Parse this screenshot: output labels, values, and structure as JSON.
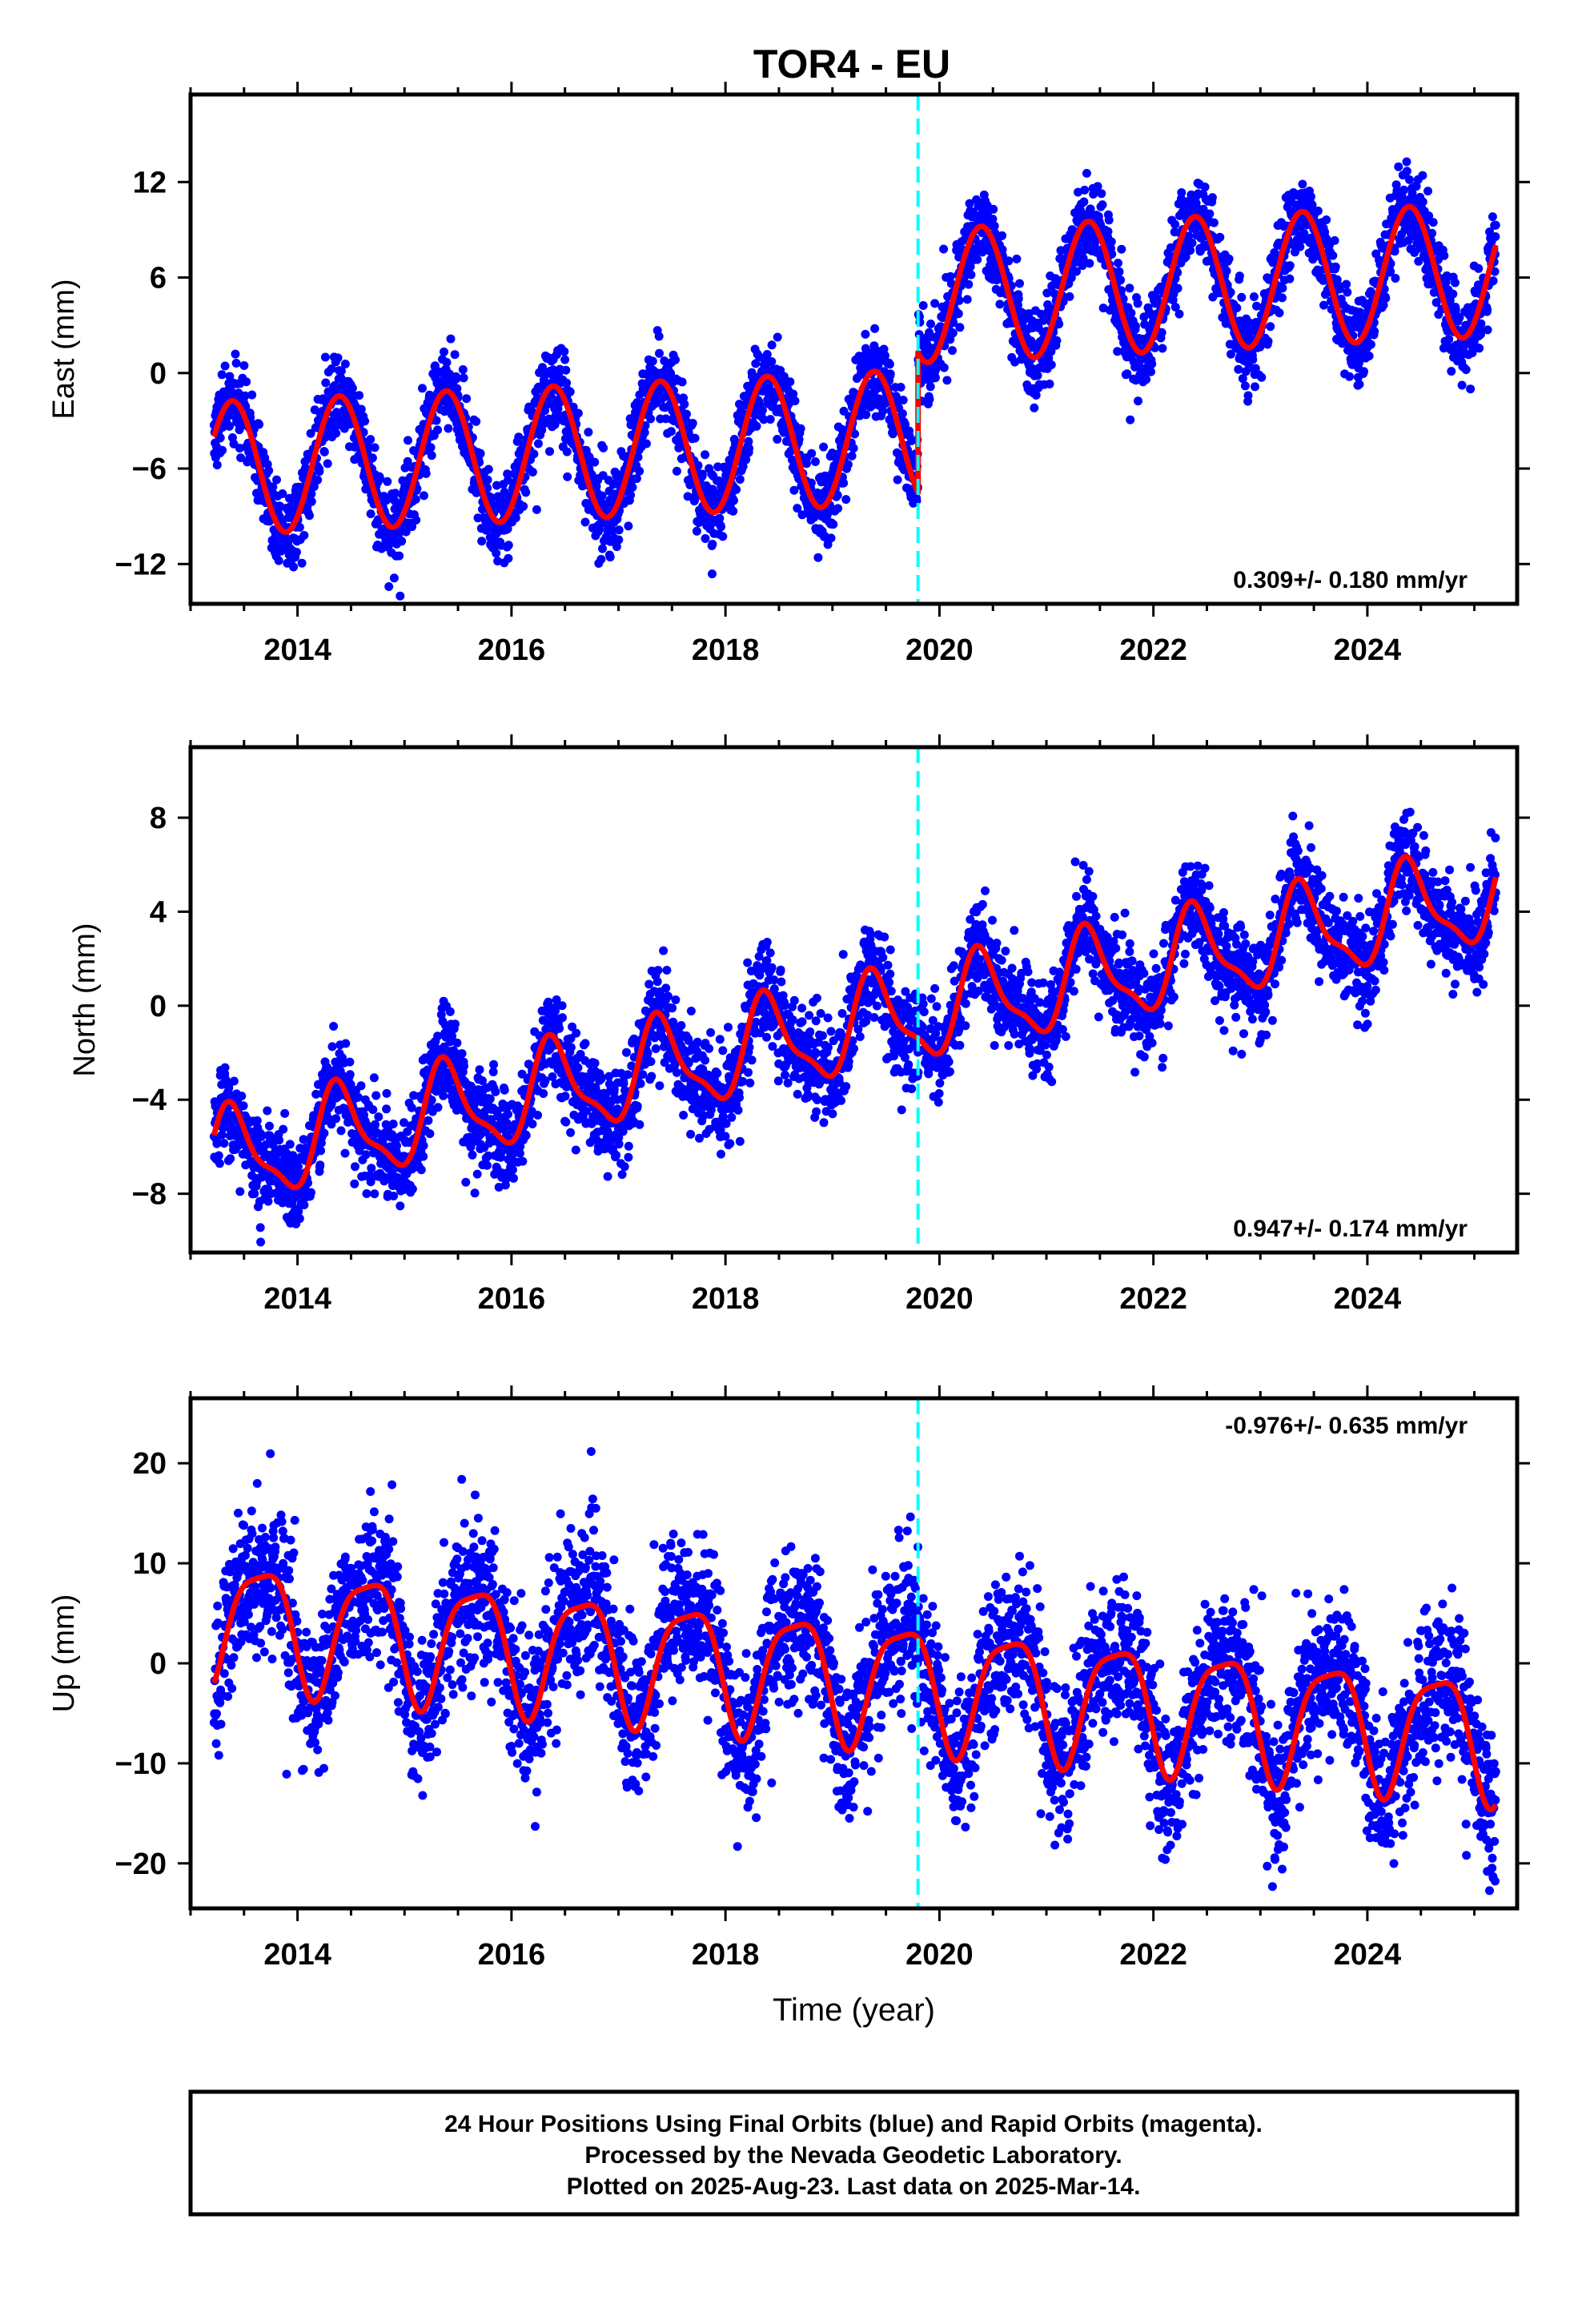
{
  "title": "TOR4 - EU",
  "footer": {
    "line1": "24 Hour Positions Using Final Orbits (blue) and Rapid Orbits (magenta).",
    "line2": "Processed by the Nevada Geodetic Laboratory.",
    "line3": "Plotted on 2025-Aug-23. Last data on 2025-Mar-14."
  },
  "colors": {
    "points": "#0000ff",
    "fit": "#ff0000",
    "event_line": "#00ffff",
    "frame": "#000000"
  },
  "chart_data": [
    {
      "type": "scatter",
      "name": "east",
      "ylabel": "East (mm)",
      "xlabel": "",
      "rate_label": "0.309+/- 0.180 mm/yr",
      "rate_position": "bottom-right",
      "xlim": [
        2013.0,
        2025.4
      ],
      "ylim": [
        -14.5,
        17.5
      ],
      "xticks": [
        2014,
        2016,
        2018,
        2020,
        2022,
        2024
      ],
      "yticks": [
        -12,
        -6,
        0,
        6,
        12
      ],
      "event_line_x": 2019.8,
      "data_start": 2013.22,
      "data_end": 2025.2,
      "model": {
        "reference_epoch": 2013.22,
        "value_at_start_mm": -6.0,
        "linear_rate_mm_per_yr": 0.309,
        "annual_amplitude_mm": 4.2,
        "annual_phase_rad": 0.5,
        "step_epoch": 2019.8,
        "step_mm": 8.8,
        "noise_sd_mm": 1.3,
        "point_count": 4100
      },
      "grid": false
    },
    {
      "type": "scatter",
      "name": "north",
      "ylabel": "North (mm)",
      "xlabel": "",
      "rate_label": "0.947+/- 0.174 mm/yr",
      "rate_position": "bottom-right",
      "xlim": [
        2013.0,
        2025.4
      ],
      "ylim": [
        -10.5,
        11.0
      ],
      "xticks": [
        2014,
        2016,
        2018,
        2020,
        2022,
        2024
      ],
      "yticks": [
        -8,
        -4,
        0,
        4,
        8
      ],
      "event_line_x": 2019.8,
      "data_start": 2013.22,
      "data_end": 2025.2,
      "model": {
        "reference_epoch": 2013.22,
        "value_at_start_mm": -6.6,
        "linear_rate_mm_per_yr": 0.947,
        "annual_amplitude_mm": 1.9,
        "annual_phase_rad": 0.5,
        "semiannual_amplitude_mm": 0.6,
        "semiannual_phase_rad": 0.3,
        "step_epoch": 2019.8,
        "step_mm": 0.0,
        "noise_sd_mm": 1.0,
        "point_count": 4100
      },
      "grid": false
    },
    {
      "type": "scatter",
      "name": "up",
      "ylabel": "Up (mm)",
      "xlabel": "Time (year)",
      "rate_label": "-0.976+/- 0.635 mm/yr",
      "rate_position": "top-right",
      "xlim": [
        2013.0,
        2025.4
      ],
      "ylim": [
        -24.5,
        26.5
      ],
      "xticks": [
        2014,
        2016,
        2018,
        2020,
        2022,
        2024
      ],
      "yticks": [
        -20,
        -10,
        0,
        10,
        20
      ],
      "event_line_x": 2019.8,
      "data_start": 2013.22,
      "data_end": 2025.2,
      "model": {
        "reference_epoch": 2013.22,
        "value_at_start_mm": 4.5,
        "linear_rate_mm_per_yr": -0.976,
        "annual_amplitude_mm": 6.0,
        "annual_phase_rad": -1.2,
        "semiannual_amplitude_mm": 1.5,
        "semiannual_phase_rad": -0.6,
        "step_epoch": 2019.8,
        "step_mm": 0.0,
        "noise_sd_mm": 3.8,
        "point_count": 4100
      },
      "grid": false
    }
  ]
}
